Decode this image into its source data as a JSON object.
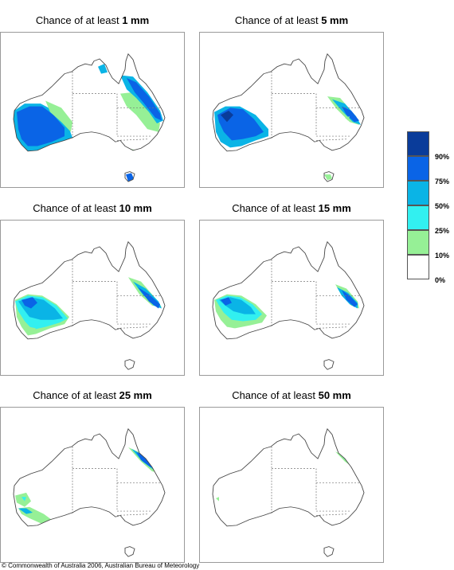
{
  "panels": [
    {
      "prefix": "Chance of at least ",
      "amount": "1 mm"
    },
    {
      "prefix": "Chance of at least ",
      "amount": "5 mm"
    },
    {
      "prefix": "Chance of at least ",
      "amount": "10 mm"
    },
    {
      "prefix": "Chance of at least ",
      "amount": "15 mm"
    },
    {
      "prefix": "Chance of at least ",
      "amount": "25 mm"
    },
    {
      "prefix": "Chance of at least ",
      "amount": "50 mm"
    }
  ],
  "legend": {
    "labels": [
      "90%",
      "75%",
      "50%",
      "25%",
      "10%",
      "0%"
    ],
    "colors": [
      "#0a3c9a",
      "#0a64e6",
      "#0ab4e6",
      "#32f0f0",
      "#96f096",
      "#ffffff"
    ]
  },
  "copyright": "© Commonwealth of Australia 2006, Australian Bureau of Meteorology"
}
